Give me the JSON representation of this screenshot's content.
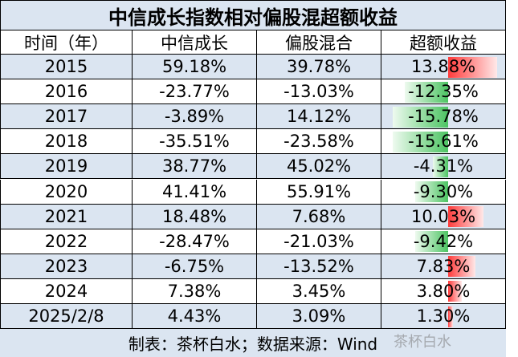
{
  "title": "中信成长指数相对偏股混超额收益",
  "table": {
    "header": [
      "时间（年）",
      "中信成长",
      "偏股混合",
      "超额收益"
    ],
    "rows": [
      [
        "2015",
        "59.18%",
        "39.78%",
        "13.88%"
      ],
      [
        "2016",
        "-23.77%",
        "-13.03%",
        "-12.35%"
      ],
      [
        "2017",
        "-3.89%",
        "14.12%",
        "-15.78%"
      ],
      [
        "2018",
        "-35.51%",
        "-23.58%",
        "-15.61%"
      ],
      [
        "2019",
        "38.77%",
        "45.02%",
        "-4.31%"
      ],
      [
        "2020",
        "41.41%",
        "55.91%",
        "-9.30%"
      ],
      [
        "2021",
        "18.48%",
        "7.68%",
        "10.03%"
      ],
      [
        "2022",
        "-28.47%",
        "-21.03%",
        "-9.42%"
      ],
      [
        "2023",
        "-6.75%",
        "-13.52%",
        "7.83%"
      ],
      [
        "2024",
        "7.38%",
        "3.45%",
        "3.80%"
      ],
      [
        "2025/2/8",
        "4.43%",
        "3.09%",
        "1.30%"
      ]
    ]
  },
  "footer": "制表：茶杯白水；数据来源：Wind",
  "watermark": "茶杯白水"
}
